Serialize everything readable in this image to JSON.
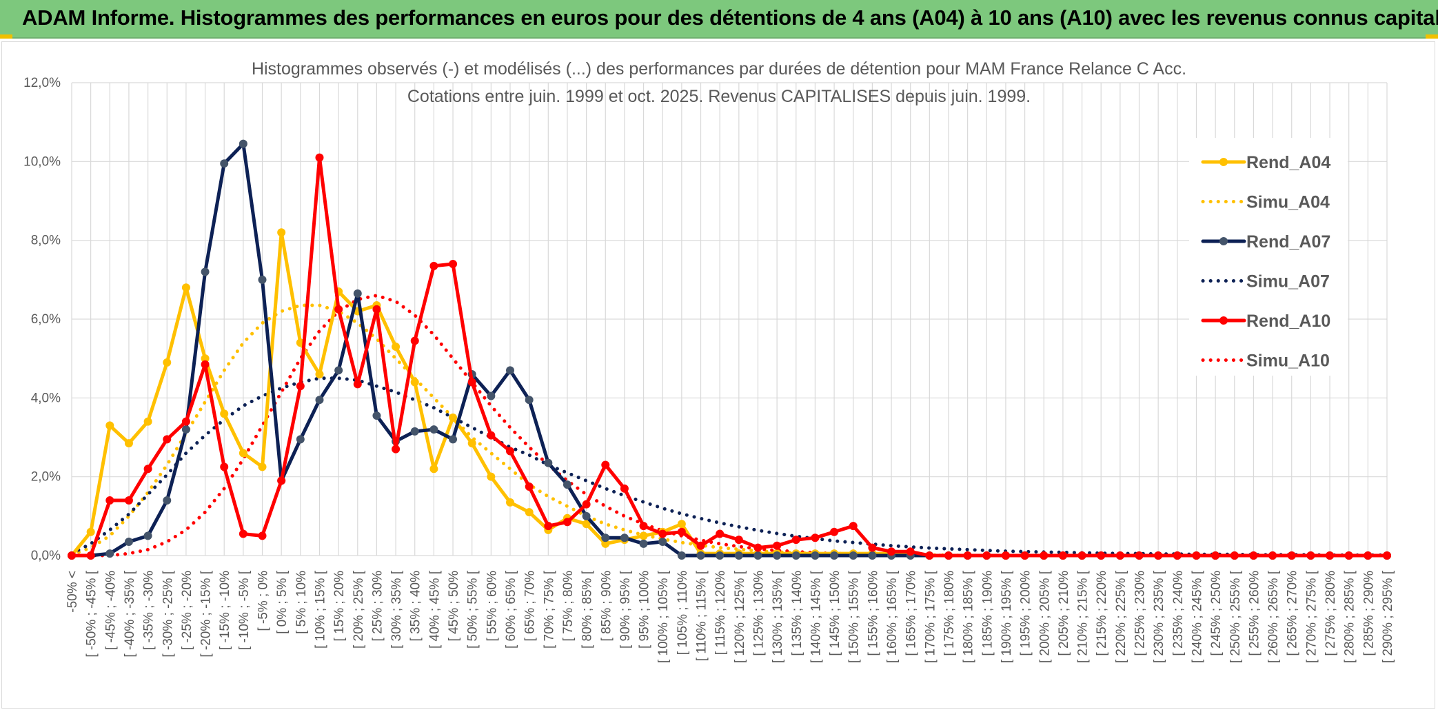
{
  "header": {
    "title": "ADAM Informe. Histogrammes des performances en euros pour des détentions de 4 ans (A04) à 10 ans (A10) avec les revenus connus capitalisés"
  },
  "chart_data": {
    "type": "line",
    "title": "Histogrammes observés (-) et modélisés (...) des performances par durées de détention pour MAM France Relance C Acc.",
    "subtitle": "Cotations entre juin. 1999 et oct. 2025. Revenus CAPITALISES depuis juin. 1999.",
    "xlabel": "",
    "ylabel": "",
    "ylim": [
      0,
      12
    ],
    "y_ticks": [
      "0,0%",
      "2,0%",
      "4,0%",
      "6,0%",
      "8,0%",
      "10,0%",
      "12,0%"
    ],
    "grid": true,
    "legend_position": "right",
    "categories": [
      "-50% <",
      "[ -50% ; -45% [",
      "[ -45% ; -40%",
      "[ -40% ; -35% [",
      "[ -35% ; -30%",
      "[ -30% ; -25% [",
      "[ -25% ; -20%",
      "[ -20% ; -15% [",
      "[ -15% ; -10%",
      "[ -10% ; -5% [",
      "[ -5% ; 0%",
      "[ 0% ; 5% [",
      "[ 5% ; 10%",
      "[ 10% ; 15% [",
      "[ 15% ; 20%",
      "[ 20% ; 25% [",
      "[ 25% ; 30%",
      "[ 30% ; 35% [",
      "[ 35% ; 40%",
      "[ 40% ; 45% [",
      "[ 45% ; 50%",
      "[ 50% ; 55% [",
      "[ 55% ; 60%",
      "[ 60% ; 65% [",
      "[ 65% ; 70%",
      "[ 70% ; 75% [",
      "[ 75% ; 80%",
      "[ 80% ; 85% [",
      "[ 85% ; 90%",
      "[ 90% ; 95% [",
      "[ 95% ; 100%",
      "[ 100% ; 105% [",
      "[ 105% ; 110%",
      "[ 110% ; 115% [",
      "[ 115% ; 120%",
      "[ 120% ; 125% [",
      "[ 125% ; 130%",
      "[ 130% ; 135% [",
      "[ 135% ; 140%",
      "[ 140% ; 145% [",
      "[ 145% ; 150%",
      "[ 150% ; 155% [",
      "[ 155% ; 160%",
      "[ 160% ; 165% [",
      "[ 165% ; 170%",
      "[ 170% ; 175% [",
      "[ 175% ; 180%",
      "[ 180% ; 185% [",
      "[ 185% ; 190%",
      "[ 190% ; 195% [",
      "[ 195% ; 200%",
      "[ 200% ; 205% [",
      "[ 205% ; 210%",
      "[ 210% ; 215% [",
      "[ 215% ; 220%",
      "[ 220% ; 225% [",
      "[ 225% ; 230%",
      "[ 230% ; 235% [",
      "[ 235% ; 240%",
      "[ 240% ; 245% [",
      "[ 245% ; 250%",
      "[ 250% ; 255% [",
      "[ 255% ; 260%",
      "[ 260% ; 265% [",
      "[ 265% ; 270%",
      "[ 270% ; 275% [",
      "[ 275% ; 280%",
      "[ 280% ; 285% [",
      "[ 285% ; 290%",
      "[ 290% ; 295% ["
    ],
    "series": [
      {
        "name": "Rend_A04",
        "color": "#ffc000",
        "style": "solid",
        "markers": true,
        "values": [
          0,
          0.6,
          3.3,
          2.85,
          3.4,
          4.9,
          6.8,
          5.0,
          3.6,
          2.6,
          2.25,
          8.2,
          5.4,
          4.6,
          6.7,
          6.2,
          6.35,
          5.3,
          4.4,
          2.2,
          3.5,
          2.85,
          2.0,
          1.35,
          1.1,
          0.65,
          0.95,
          0.8,
          0.3,
          0.4,
          0.5,
          0.6,
          0.8,
          0.05,
          0.05,
          0.05,
          0.05,
          0.05,
          0.05,
          0.05,
          0.05,
          0.05,
          0.05,
          0.05,
          0.05,
          0,
          0,
          0,
          0,
          0,
          0,
          0,
          0,
          0,
          0,
          0,
          0,
          0,
          0,
          0,
          0,
          0,
          0,
          0,
          0,
          0,
          0,
          0,
          0,
          0
        ]
      },
      {
        "name": "Simu_A04",
        "color": "#ffc000",
        "style": "dotted",
        "markers": false,
        "values": [
          0.02,
          0.2,
          0.5,
          1.0,
          1.6,
          2.3,
          3.1,
          3.9,
          4.7,
          5.4,
          5.9,
          6.2,
          6.35,
          6.35,
          6.2,
          5.9,
          5.5,
          5.0,
          4.5,
          4.0,
          3.5,
          3.0,
          2.6,
          2.2,
          1.8,
          1.5,
          1.25,
          1.0,
          0.8,
          0.65,
          0.52,
          0.42,
          0.33,
          0.26,
          0.2,
          0.16,
          0.12,
          0.09,
          0.07,
          0.05,
          0.04,
          0.03,
          0.02,
          0.02,
          0.01,
          0.01,
          0.01,
          0,
          0,
          0,
          0,
          0,
          0,
          0,
          0,
          0,
          0,
          0,
          0,
          0,
          0,
          0,
          0,
          0,
          0,
          0,
          0,
          0,
          0,
          0
        ]
      },
      {
        "name": "Rend_A07",
        "color": "#0d2155",
        "style": "solid",
        "markers": true,
        "marker_color": "#44546a",
        "values": [
          0,
          0,
          0.05,
          0.35,
          0.5,
          1.4,
          3.2,
          7.2,
          9.95,
          10.45,
          7.0,
          1.9,
          2.95,
          3.95,
          4.7,
          6.65,
          3.55,
          2.9,
          3.15,
          3.2,
          2.95,
          4.6,
          4.05,
          4.7,
          3.95,
          2.35,
          1.8,
          1.0,
          0.45,
          0.45,
          0.3,
          0.35,
          0,
          0,
          0,
          0,
          0,
          0,
          0,
          0,
          0,
          0,
          0,
          0,
          0,
          0,
          0,
          0,
          0,
          0,
          0,
          0,
          0,
          0,
          0,
          0,
          0,
          0,
          0,
          0,
          0,
          0,
          0,
          0,
          0,
          0,
          0,
          0,
          0,
          0
        ]
      },
      {
        "name": "Simu_A07",
        "color": "#0d2155",
        "style": "dotted",
        "markers": false,
        "values": [
          0.05,
          0.3,
          0.65,
          1.05,
          1.55,
          2.05,
          2.6,
          3.05,
          3.45,
          3.8,
          4.05,
          4.25,
          4.4,
          4.5,
          4.5,
          4.45,
          4.3,
          4.15,
          3.95,
          3.75,
          3.5,
          3.25,
          3.0,
          2.75,
          2.55,
          2.3,
          2.1,
          1.9,
          1.7,
          1.52,
          1.36,
          1.2,
          1.06,
          0.94,
          0.83,
          0.73,
          0.64,
          0.56,
          0.49,
          0.43,
          0.37,
          0.33,
          0.29,
          0.25,
          0.22,
          0.19,
          0.17,
          0.15,
          0.13,
          0.11,
          0.1,
          0.09,
          0.08,
          0.07,
          0.06,
          0.05,
          0.05,
          0.04,
          0.04,
          0.03,
          0.03,
          0.03,
          0.02,
          0.02,
          0.02,
          0.02,
          0.01,
          0.01,
          0.01,
          0.01
        ]
      },
      {
        "name": "Rend_A10",
        "color": "#ff0000",
        "style": "solid",
        "markers": true,
        "values": [
          0,
          0,
          1.4,
          1.4,
          2.2,
          2.95,
          3.4,
          4.85,
          2.25,
          0.55,
          0.5,
          1.9,
          4.3,
          10.1,
          6.25,
          4.35,
          6.25,
          2.7,
          5.45,
          7.35,
          7.4,
          4.4,
          3.05,
          2.65,
          1.75,
          0.75,
          0.85,
          1.3,
          2.3,
          1.7,
          0.75,
          0.55,
          0.6,
          0.25,
          0.55,
          0.4,
          0.2,
          0.25,
          0.4,
          0.45,
          0.6,
          0.75,
          0.2,
          0.1,
          0.1,
          0,
          0,
          0,
          0,
          0,
          0,
          0,
          0,
          0,
          0,
          0,
          0,
          0,
          0,
          0,
          0,
          0,
          0,
          0,
          0,
          0,
          0,
          0,
          0,
          0
        ]
      },
      {
        "name": "Simu_A10",
        "color": "#ff0000",
        "style": "dotted",
        "markers": false,
        "values": [
          0,
          0,
          0,
          0.05,
          0.15,
          0.35,
          0.65,
          1.1,
          1.7,
          2.45,
          3.3,
          4.15,
          5.0,
          5.7,
          6.2,
          6.5,
          6.6,
          6.45,
          6.1,
          5.6,
          5.0,
          4.4,
          3.8,
          3.25,
          2.75,
          2.3,
          1.9,
          1.55,
          1.25,
          1.0,
          0.8,
          0.63,
          0.5,
          0.39,
          0.3,
          0.23,
          0.17,
          0.13,
          0.1,
          0.07,
          0.05,
          0.04,
          0.03,
          0.02,
          0.01,
          0.01,
          0,
          0,
          0,
          0,
          0,
          0,
          0,
          0,
          0,
          0,
          0,
          0,
          0,
          0,
          0,
          0,
          0,
          0,
          0,
          0,
          0,
          0,
          0,
          0
        ]
      }
    ]
  }
}
